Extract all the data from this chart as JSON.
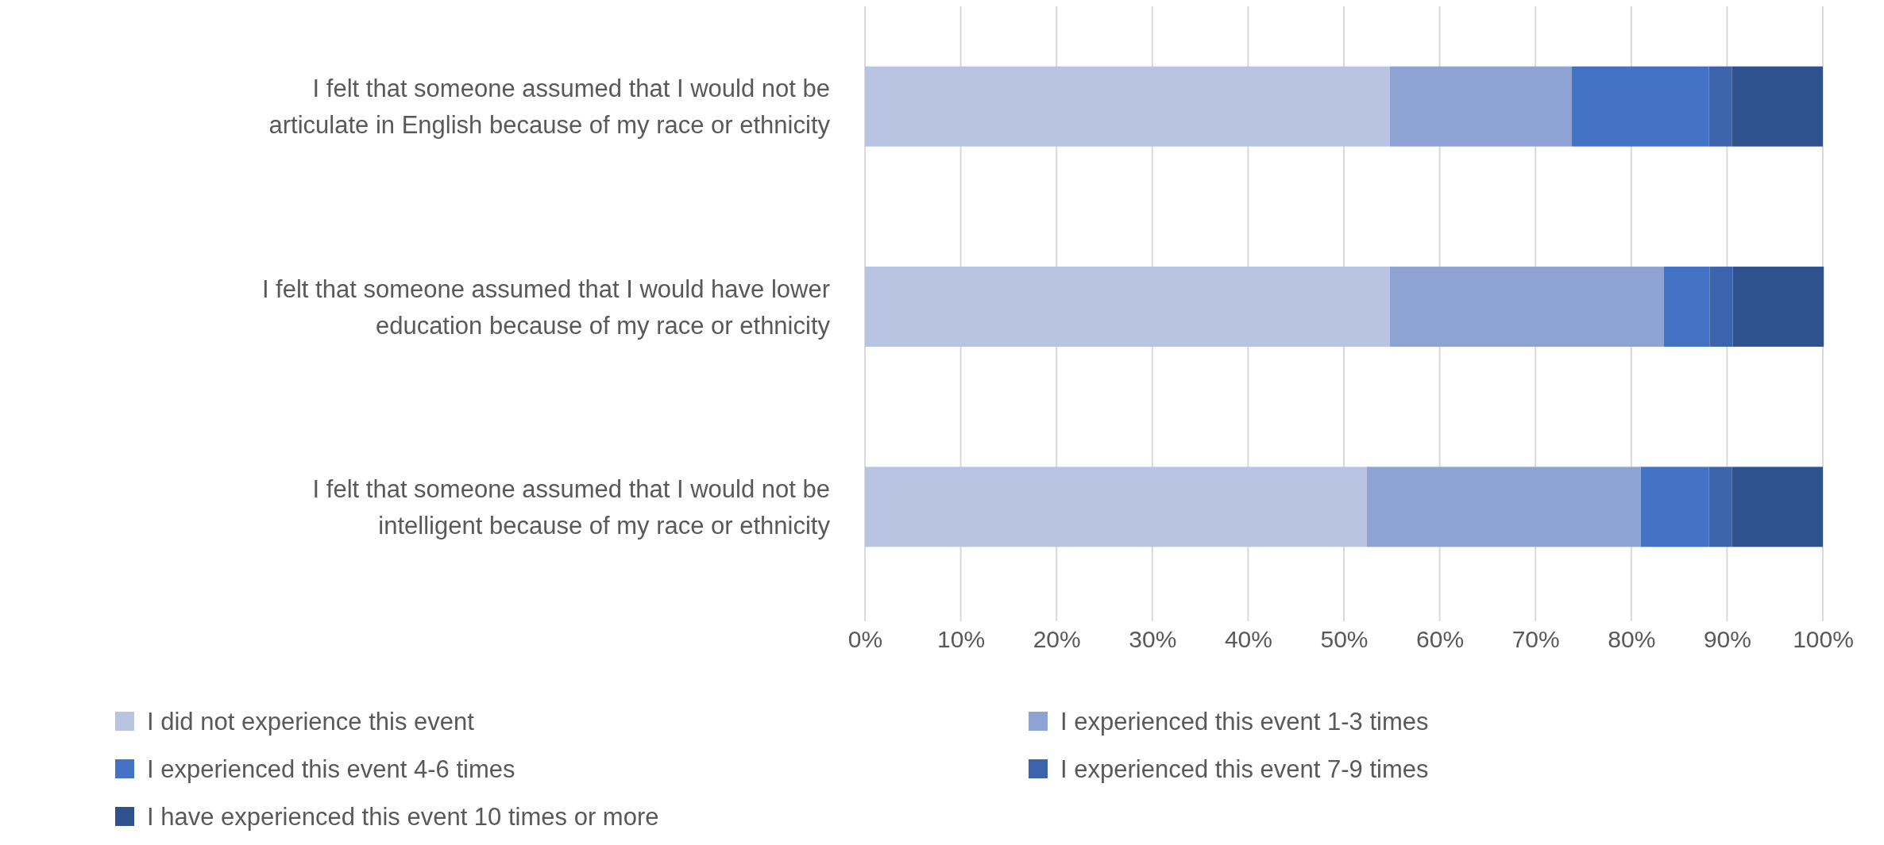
{
  "chart_data": {
    "type": "bar",
    "orientation": "horizontal",
    "stacked": true,
    "categories": [
      "I felt that someone assumed that I would not be articulate in English because of my race or ethnicity",
      "I felt that someone assumed that I would have lower education because of my race or ethnicity",
      "I felt that someone assumed that I would not be intelligent because of my race or ethnicity"
    ],
    "series": [
      {
        "name": "I did not experience this event",
        "color": "#b9c3e2",
        "values": [
          54.8,
          54.8,
          52.4
        ]
      },
      {
        "name": "I experienced this event 1-3 times",
        "color": "#8fa3d3",
        "values": [
          19.0,
          28.6,
          28.6
        ]
      },
      {
        "name": "I experienced this event 4-6 times",
        "color": "#4472c4",
        "values": [
          14.3,
          4.8,
          7.1
        ]
      },
      {
        "name": "I experienced this event 7-9 times",
        "color": "#3b64ad",
        "values": [
          2.4,
          2.4,
          2.4
        ]
      },
      {
        "name": "I have experienced this event 10 times or more",
        "color": "#2f528f",
        "values": [
          9.5,
          9.5,
          9.5
        ]
      }
    ],
    "xlim": [
      0,
      100
    ],
    "xticks": [
      {
        "value": 0,
        "label": "0%"
      },
      {
        "value": 10,
        "label": "10%"
      },
      {
        "value": 20,
        "label": "20%"
      },
      {
        "value": 30,
        "label": "30%"
      },
      {
        "value": 40,
        "label": "40%"
      },
      {
        "value": 50,
        "label": "50%"
      },
      {
        "value": 60,
        "label": "60%"
      },
      {
        "value": 70,
        "label": "70%"
      },
      {
        "value": 80,
        "label": "80%"
      },
      {
        "value": 90,
        "label": "90%"
      },
      {
        "value": 100,
        "label": "100%"
      }
    ],
    "grid": "x",
    "legend": "bottom"
  }
}
